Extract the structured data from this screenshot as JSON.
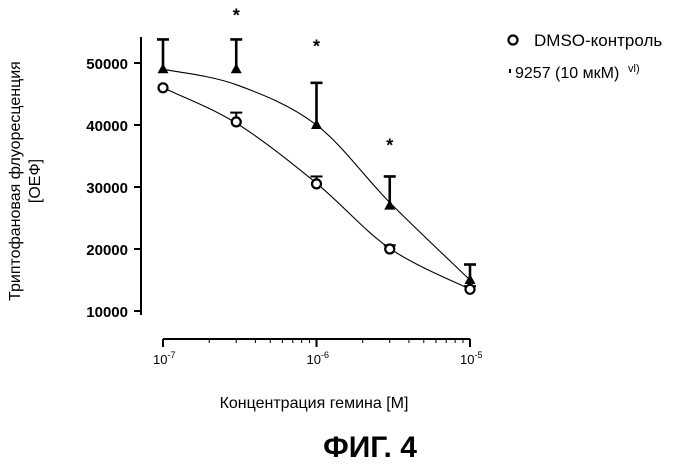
{
  "figure_caption": "ФИГ. 4",
  "colors": {
    "ink": "#000000",
    "background": "#ffffff"
  },
  "chart_data": {
    "type": "scatter",
    "xlabel": "Концентрация гемина [M]",
    "ylabel_line1": "Триптофановая флуоресценция",
    "ylabel_line2": "[ОЕФ]",
    "x_scale": "log",
    "xlim": [
      1e-07,
      1e-05
    ],
    "ylim": [
      10000,
      55000
    ],
    "x_ticks": [
      {
        "value": 1e-07,
        "base": "10",
        "exp": "-7"
      },
      {
        "value": 1e-06,
        "base": "10",
        "exp": "-6"
      },
      {
        "value": 1e-05,
        "base": "10",
        "exp": "-5"
      }
    ],
    "y_ticks": [
      {
        "value": 10000,
        "label": "10000"
      },
      {
        "value": 20000,
        "label": "20000"
      },
      {
        "value": 30000,
        "label": "30000"
      },
      {
        "value": 40000,
        "label": "40000"
      },
      {
        "value": 50000,
        "label": "50000"
      }
    ],
    "grid": false,
    "legend_position": "top-right",
    "series": [
      {
        "name": "DMSO-контроль",
        "marker": "open-circle",
        "x": [
          1e-07,
          3e-07,
          1e-06,
          3e-06,
          1e-05
        ],
        "y": [
          46000,
          40500,
          30500,
          20000,
          13500
        ],
        "err": [
          0,
          1500,
          1200,
          600,
          500
        ],
        "fit": [
          46000,
          40300,
          30600,
          20100,
          13500
        ]
      },
      {
        "name": "9257 (10 мкМ)",
        "legend_trail": "vl)",
        "marker": "filled-triangle",
        "x": [
          1e-07,
          3e-07,
          1e-06,
          3e-06,
          1e-05
        ],
        "y": [
          49000,
          49000,
          40000,
          27000,
          15000
        ],
        "err": [
          4800,
          4800,
          6800,
          4700,
          2500
        ],
        "fit": [
          49000,
          46500,
          40000,
          27500,
          15000
        ]
      }
    ],
    "annotations": [
      {
        "text": "*",
        "x": 3e-07,
        "y": 58000
      },
      {
        "text": "*",
        "x": 1e-06,
        "y": 53000
      },
      {
        "text": "*",
        "x": 3e-06,
        "y": 37000
      }
    ]
  }
}
